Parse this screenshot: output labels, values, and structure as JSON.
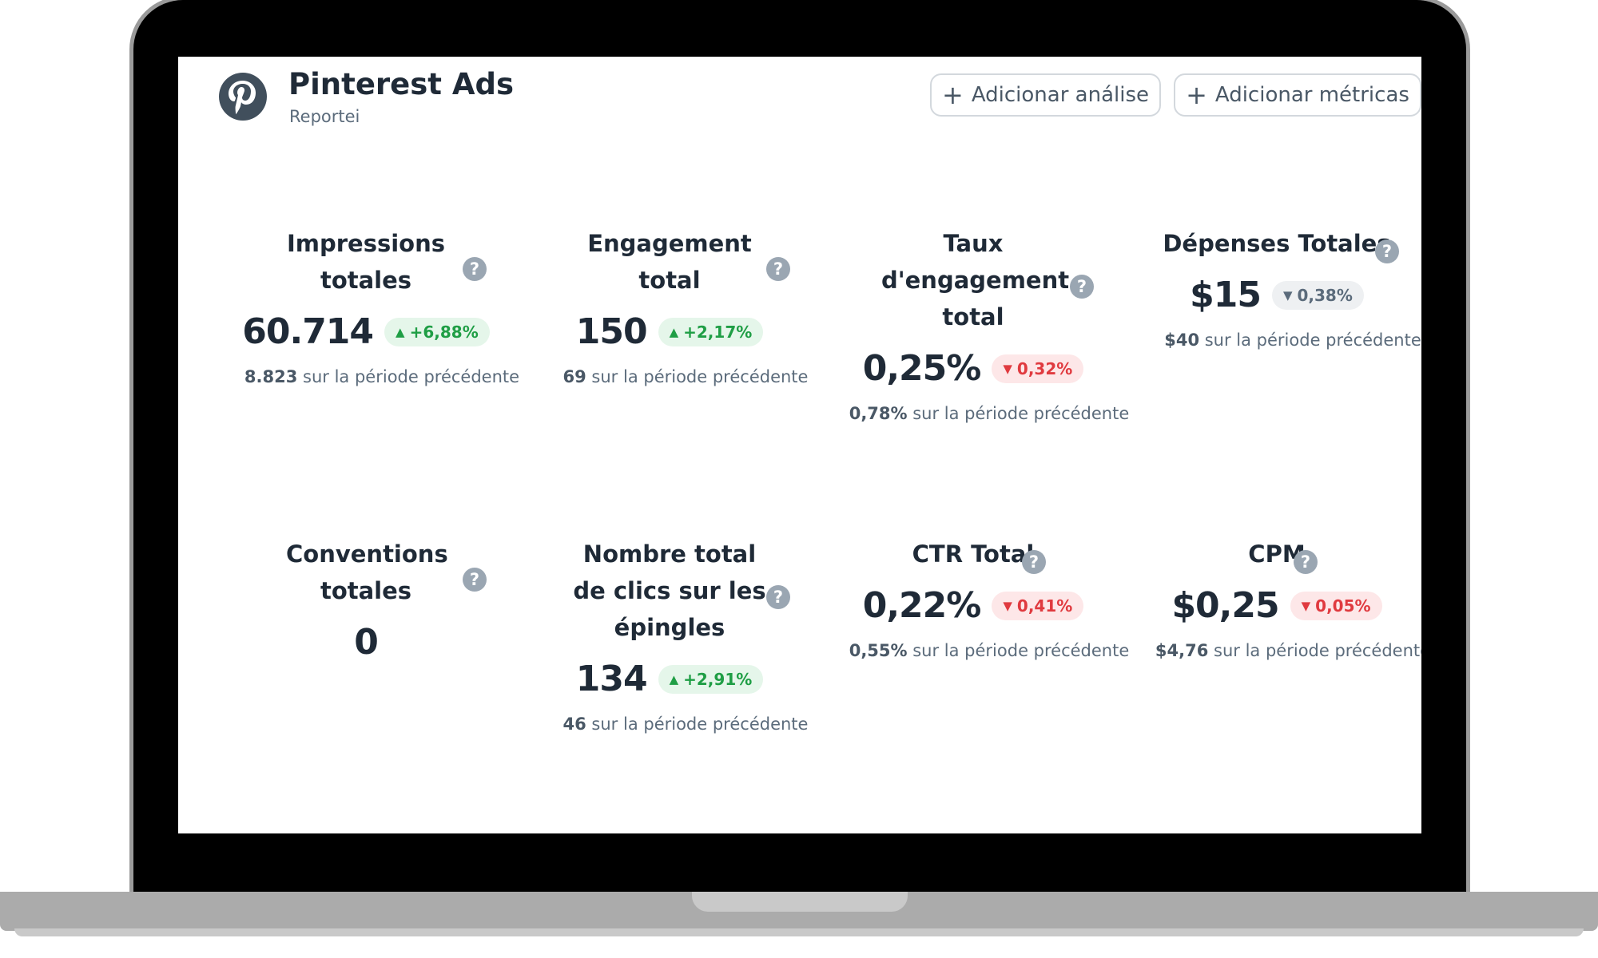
{
  "header": {
    "title": "Pinterest Ads",
    "subtitle": "Reportei",
    "add_analysis_label": "Adicionar análise",
    "add_metrics_label": "Adicionar métricas"
  },
  "colors": {
    "up": "#1f9e45",
    "down": "#e03a3f",
    "neutral": "#5b6b7b",
    "text": "#1f2a37"
  },
  "metrics": [
    {
      "title": "Impressions totales",
      "value": "60.714",
      "delta": "+6,88%",
      "trend": "up",
      "prev_value": "8.823",
      "prev_text": "sur la période précédente"
    },
    {
      "title": "Engagement total",
      "value": "150",
      "delta": "+2,17%",
      "trend": "up",
      "prev_value": "69",
      "prev_text": "sur la période précédente"
    },
    {
      "title": "Taux d'engagement total",
      "value": "0,25%",
      "delta": "0,32%",
      "trend": "down",
      "prev_value": "0,78%",
      "prev_text": "sur la période précédente"
    },
    {
      "title": "Dépenses Totales",
      "value": "$15",
      "delta": "0,38%",
      "trend": "neutral",
      "prev_value": "$40",
      "prev_text": "sur la période précédente"
    },
    {
      "title": "Conventions totales",
      "value": "0",
      "delta": "",
      "trend": "",
      "prev_value": "",
      "prev_text": ""
    },
    {
      "title": "Nombre total de clics sur les épingles",
      "value": "134",
      "delta": "+2,91%",
      "trend": "up",
      "prev_value": "46",
      "prev_text": "sur la période précédente"
    },
    {
      "title": "CTR Total",
      "value": "0,22%",
      "delta": "0,41%",
      "trend": "down",
      "prev_value": "0,55%",
      "prev_text": "sur la période précédente"
    },
    {
      "title": "CPM",
      "value": "$0,25",
      "delta": "0,05%",
      "trend": "down",
      "prev_value": "$4,76",
      "prev_text": "sur la période précédente"
    }
  ],
  "icons": {
    "help": "?",
    "up": "▲",
    "down": "▼",
    "plus": "+"
  }
}
